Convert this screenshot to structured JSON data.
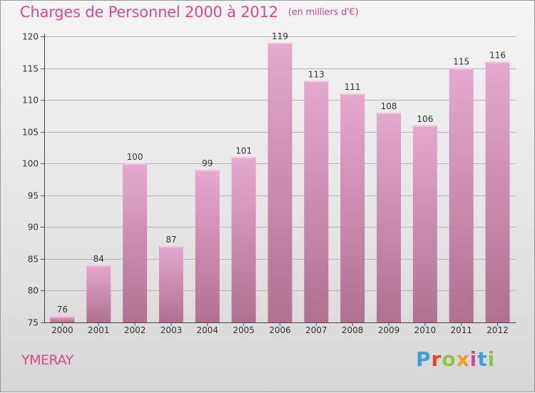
{
  "title": "Charges de Personnel 2000 à 2012",
  "unit_note": "(en milliers d'€)",
  "town": "YMERAY",
  "logo_text": "Proxiti",
  "colors": {
    "title": "#d64a8a",
    "bar_top": "#e6a8ce",
    "bar_bottom": "#b0708f",
    "logo": [
      "#3aa0dc",
      "#e0462a",
      "#8ac43a",
      "#f0a020",
      "#d64a8a",
      "#3aa0dc",
      "#8ac43a"
    ]
  },
  "chart_data": {
    "type": "bar",
    "categories": [
      "2000",
      "2001",
      "2002",
      "2003",
      "2004",
      "2005",
      "2006",
      "2007",
      "2008",
      "2009",
      "2010",
      "2011",
      "2012"
    ],
    "values": [
      76,
      84,
      100,
      87,
      99,
      101,
      119,
      113,
      111,
      108,
      106,
      115,
      116
    ],
    "title": "Charges de Personnel 2000 à 2012",
    "ylim": [
      75,
      120
    ],
    "yticks": [
      75,
      80,
      85,
      90,
      95,
      100,
      105,
      110,
      115,
      120
    ],
    "grid": true,
    "data_labels": true
  }
}
